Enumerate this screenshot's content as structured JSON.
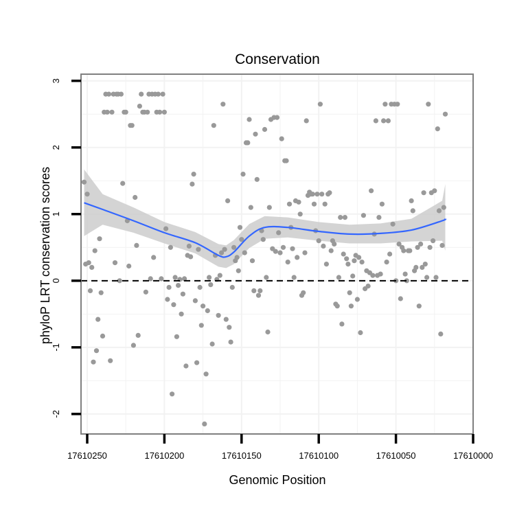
{
  "chart_data": {
    "type": "scatter",
    "title": "Conservation",
    "xlabel": "Genomic Position",
    "ylabel": "phyloP LRT conservation scores",
    "xlim": [
      17610254,
      17610000
    ],
    "ylim": [
      -2.3,
      3.1
    ],
    "x_ticks": [
      17610250,
      17610200,
      17610150,
      17610100,
      17610050,
      17610000
    ],
    "x_tick_labels": [
      "17610250",
      "17610200",
      "17610150",
      "17610100",
      "17610050",
      "17610000"
    ],
    "y_ticks": [
      -2,
      -1,
      0,
      1,
      2,
      3
    ],
    "y_tick_labels": [
      "-2",
      "-1",
      "0",
      "1",
      "2",
      "3"
    ],
    "reference_line": {
      "y": 0,
      "style": "dashed"
    },
    "colors": {
      "points": "#999999",
      "smooth": "#3366ff",
      "ribbon": "#cccccc",
      "panel_border": "#7f7f7f",
      "grid": "#f2f2f2"
    },
    "points": [
      [
        17610252,
        1.48
      ],
      [
        17610251,
        0.25
      ],
      [
        17610250,
        1.3
      ],
      [
        17610249,
        0.27
      ],
      [
        17610248,
        -0.15
      ],
      [
        17610247,
        0.2
      ],
      [
        17610246,
        -1.22
      ],
      [
        17610245,
        0.45
      ],
      [
        17610244,
        -1.05
      ],
      [
        17610243,
        -0.58
      ],
      [
        17610242,
        0.63
      ],
      [
        17610241,
        -0.18
      ],
      [
        17610240,
        -0.83
      ],
      [
        17610239,
        2.53
      ],
      [
        17610238,
        2.8
      ],
      [
        17610237,
        2.53
      ],
      [
        17610236,
        2.8
      ],
      [
        17610235,
        -1.2
      ],
      [
        17610234,
        2.53
      ],
      [
        17610233,
        2.8
      ],
      [
        17610232,
        0.27
      ],
      [
        17610231,
        2.8
      ],
      [
        17610230,
        2.8
      ],
      [
        17610229,
        0.0
      ],
      [
        17610228,
        2.8
      ],
      [
        17610227,
        1.46
      ],
      [
        17610226,
        2.53
      ],
      [
        17610225,
        2.53
      ],
      [
        17610224,
        0.9
      ],
      [
        17610223,
        0.22
      ],
      [
        17610222,
        2.33
      ],
      [
        17610221,
        2.33
      ],
      [
        17610220,
        -0.97
      ],
      [
        17610219,
        1.25
      ],
      [
        17610218,
        0.53
      ],
      [
        17610217,
        -0.82
      ],
      [
        17610216,
        2.62
      ],
      [
        17610215,
        2.8
      ],
      [
        17610214,
        2.53
      ],
      [
        17610213,
        2.53
      ],
      [
        17610212,
        -0.17
      ],
      [
        17610211,
        2.53
      ],
      [
        17610210,
        2.8
      ],
      [
        17610209,
        0.03
      ],
      [
        17610208,
        2.8
      ],
      [
        17610207,
        0.35
      ],
      [
        17610206,
        2.8
      ],
      [
        17610205,
        2.53
      ],
      [
        17610204,
        2.8
      ],
      [
        17610203,
        2.53
      ],
      [
        17610202,
        0.03
      ],
      [
        17610201,
        2.8
      ],
      [
        17610200,
        2.53
      ],
      [
        17610199,
        0.78
      ],
      [
        17610198,
        -0.28
      ],
      [
        17610197,
        -0.1
      ],
      [
        17610196,
        0.5
      ],
      [
        17610195,
        -1.7
      ],
      [
        17610194,
        -0.36
      ],
      [
        17610193,
        0.05
      ],
      [
        17610192,
        -0.84
      ],
      [
        17610191,
        -0.07
      ],
      [
        17610190,
        0.02
      ],
      [
        17610189,
        -0.5
      ],
      [
        17610188,
        -0.2
      ],
      [
        17610187,
        0.03
      ],
      [
        17610186,
        -1.28
      ],
      [
        17610185,
        0.38
      ],
      [
        17610184,
        0.52
      ],
      [
        17610183,
        0.36
      ],
      [
        17610182,
        1.45
      ],
      [
        17610181,
        1.6
      ],
      [
        17610180,
        -0.3
      ],
      [
        17610179,
        -1.23
      ],
      [
        17610178,
        0.47
      ],
      [
        17610177,
        -0.1
      ],
      [
        17610176,
        -0.67
      ],
      [
        17610175,
        -0.38
      ],
      [
        17610174,
        -2.15
      ],
      [
        17610173,
        -1.4
      ],
      [
        17610172,
        -0.45
      ],
      [
        17610171,
        0.05
      ],
      [
        17610170,
        -0.06
      ],
      [
        17610169,
        -0.95
      ],
      [
        17610168,
        2.33
      ],
      [
        17610167,
        0.38
      ],
      [
        17610166,
        0.02
      ],
      [
        17610165,
        -0.52
      ],
      [
        17610164,
        0.08
      ],
      [
        17610163,
        0.42
      ],
      [
        17610162,
        2.65
      ],
      [
        17610161,
        0.47
      ],
      [
        17610160,
        -0.58
      ],
      [
        17610159,
        1.2
      ],
      [
        17610158,
        -0.7
      ],
      [
        17610157,
        -0.92
      ],
      [
        17610156,
        -0.1
      ],
      [
        17610155,
        0.5
      ],
      [
        17610154,
        0.3
      ],
      [
        17610153,
        0.35
      ],
      [
        17610152,
        0.15
      ],
      [
        17610151,
        0.8
      ],
      [
        17610150,
        0.62
      ],
      [
        17610149,
        1.6
      ],
      [
        17610148,
        0.42
      ],
      [
        17610147,
        2.07
      ],
      [
        17610146,
        2.07
      ],
      [
        17610145,
        2.42
      ],
      [
        17610144,
        1.1
      ],
      [
        17610143,
        0.3
      ],
      [
        17610142,
        -0.15
      ],
      [
        17610141,
        2.2
      ],
      [
        17610140,
        1.52
      ],
      [
        17610139,
        -0.22
      ],
      [
        17610138,
        -0.15
      ],
      [
        17610137,
        0.75
      ],
      [
        17610136,
        0.62
      ],
      [
        17610135,
        2.27
      ],
      [
        17610134,
        0.05
      ],
      [
        17610133,
        -0.77
      ],
      [
        17610132,
        1.1
      ],
      [
        17610131,
        2.42
      ],
      [
        17610130,
        0.48
      ],
      [
        17610129,
        2.45
      ],
      [
        17610128,
        0.44
      ],
      [
        17610127,
        2.45
      ],
      [
        17610126,
        0.72
      ],
      [
        17610125,
        0.42
      ],
      [
        17610124,
        2.13
      ],
      [
        17610123,
        0.5
      ],
      [
        17610122,
        1.8
      ],
      [
        17610121,
        1.8
      ],
      [
        17610120,
        0.28
      ],
      [
        17610119,
        1.15
      ],
      [
        17610118,
        0.8
      ],
      [
        17610117,
        0.48
      ],
      [
        17610116,
        0.05
      ],
      [
        17610115,
        1.2
      ],
      [
        17610114,
        0.35
      ],
      [
        17610113,
        1.18
      ],
      [
        17610112,
        1.0
      ],
      [
        17610111,
        -0.22
      ],
      [
        17610110,
        -0.18
      ],
      [
        17610109,
        0.42
      ],
      [
        17610108,
        2.4
      ],
      [
        17610107,
        1.28
      ],
      [
        17610106,
        1.33
      ],
      [
        17610105,
        1.3
      ],
      [
        17610104,
        1.3
      ],
      [
        17610103,
        1.15
      ],
      [
        17610102,
        0.75
      ],
      [
        17610101,
        1.3
      ],
      [
        17610100,
        0.6
      ],
      [
        17610099,
        2.65
      ],
      [
        17610098,
        1.3
      ],
      [
        17610097,
        0.52
      ],
      [
        17610096,
        1.15
      ],
      [
        17610095,
        0.25
      ],
      [
        17610094,
        1.3
      ],
      [
        17610093,
        1.32
      ],
      [
        17610092,
        0.45
      ],
      [
        17610091,
        0.6
      ],
      [
        17610090,
        0.55
      ],
      [
        17610089,
        -0.35
      ],
      [
        17610088,
        -0.38
      ],
      [
        17610087,
        0.05
      ],
      [
        17610086,
        0.95
      ],
      [
        17610085,
        -0.65
      ],
      [
        17610084,
        0.4
      ],
      [
        17610083,
        0.95
      ],
      [
        17610082,
        0.33
      ],
      [
        17610081,
        0.25
      ],
      [
        17610080,
        -0.18
      ],
      [
        17610079,
        -0.38
      ],
      [
        17610078,
        0.07
      ],
      [
        17610077,
        0.3
      ],
      [
        17610076,
        0.38
      ],
      [
        17610075,
        -0.28
      ],
      [
        17610074,
        0.35
      ],
      [
        17610073,
        -0.78
      ],
      [
        17610072,
        0.28
      ],
      [
        17610071,
        0.98
      ],
      [
        17610070,
        -0.12
      ],
      [
        17610069,
        0.15
      ],
      [
        17610068,
        -0.08
      ],
      [
        17610067,
        0.12
      ],
      [
        17610066,
        1.35
      ],
      [
        17610065,
        0.08
      ],
      [
        17610064,
        0.7
      ],
      [
        17610063,
        2.4
      ],
      [
        17610062,
        0.08
      ],
      [
        17610061,
        0.95
      ],
      [
        17610060,
        0.1
      ],
      [
        17610059,
        1.15
      ],
      [
        17610058,
        2.4
      ],
      [
        17610057,
        2.65
      ],
      [
        17610056,
        0.28
      ],
      [
        17610055,
        2.4
      ],
      [
        17610054,
        0.4
      ],
      [
        17610053,
        2.65
      ],
      [
        17610052,
        0.85
      ],
      [
        17610051,
        2.65
      ],
      [
        17610050,
        0.0
      ],
      [
        17610049,
        2.65
      ],
      [
        17610048,
        0.55
      ],
      [
        17610047,
        -0.27
      ],
      [
        17610046,
        0.5
      ],
      [
        17610045,
        0.45
      ],
      [
        17610044,
        0.1
      ],
      [
        17610043,
        0.0
      ],
      [
        17610042,
        0.45
      ],
      [
        17610041,
        0.45
      ],
      [
        17610040,
        1.2
      ],
      [
        17610039,
        1.05
      ],
      [
        17610038,
        0.15
      ],
      [
        17610037,
        0.2
      ],
      [
        17610036,
        0.5
      ],
      [
        17610035,
        -0.38
      ],
      [
        17610034,
        0.55
      ],
      [
        17610033,
        0.2
      ],
      [
        17610032,
        1.32
      ],
      [
        17610031,
        0.25
      ],
      [
        17610030,
        0.05
      ],
      [
        17610029,
        2.65
      ],
      [
        17610028,
        0.5
      ],
      [
        17610027,
        1.32
      ],
      [
        17610026,
        0.6
      ],
      [
        17610025,
        1.35
      ],
      [
        17610024,
        0.05
      ],
      [
        17610023,
        2.28
      ],
      [
        17610022,
        1.05
      ],
      [
        17610021,
        -0.8
      ],
      [
        17610020,
        0.53
      ],
      [
        17610019,
        1.1
      ],
      [
        17610018,
        2.5
      ]
    ],
    "smooth": {
      "x": [
        17610252,
        17610240,
        17610220,
        17610200,
        17610180,
        17610165,
        17610160,
        17610155,
        17610145,
        17610135,
        17610120,
        17610100,
        17610080,
        17610060,
        17610040,
        17610020,
        17610018
      ],
      "y": [
        1.17,
        1.07,
        0.9,
        0.72,
        0.57,
        0.38,
        0.36,
        0.43,
        0.67,
        0.8,
        0.8,
        0.74,
        0.7,
        0.71,
        0.76,
        0.9,
        0.93
      ],
      "ci_upper": [
        1.67,
        1.3,
        1.1,
        0.88,
        0.73,
        0.55,
        0.53,
        0.61,
        0.85,
        0.97,
        0.95,
        0.88,
        0.84,
        0.86,
        0.93,
        1.2,
        1.45
      ],
      "ci_lower": [
        0.67,
        0.84,
        0.72,
        0.56,
        0.41,
        0.21,
        0.19,
        0.25,
        0.49,
        0.63,
        0.65,
        0.6,
        0.56,
        0.56,
        0.59,
        0.6,
        0.45
      ]
    }
  }
}
